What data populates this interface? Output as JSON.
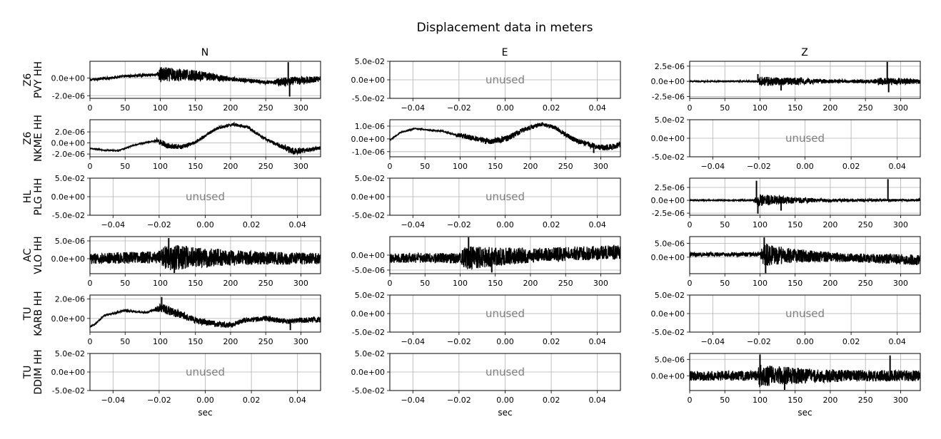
{
  "figure": {
    "title": "Displacement data in meters",
    "columns": [
      "N",
      "E",
      "Z"
    ],
    "xlabel": "sec",
    "unused_text": "unused",
    "rows": [
      {
        "line1": "Z6",
        "line2": "PVY HH"
      },
      {
        "line1": "Z6",
        "line2": "NKME HH"
      },
      {
        "line1": "HL",
        "line2": "PLG HH"
      },
      {
        "line1": "AC",
        "line2": "VLO HH"
      },
      {
        "line1": "TU",
        "line2": "KARB HH"
      },
      {
        "line1": "TU",
        "line2": "DDIM HH"
      }
    ]
  },
  "chart_data": [
    {
      "row": 0,
      "col": 0,
      "type": "line",
      "used": true,
      "xlim": [
        0,
        328
      ],
      "ylim": [
        -2.3e-06,
        1.9e-06
      ],
      "xticks": [
        0,
        50,
        100,
        150,
        200,
        250,
        300
      ],
      "yticks": [
        -2e-06,
        0
      ],
      "ytick_labels": [
        "-2.0e-06",
        "0.0e+00"
      ],
      "baseline": [
        [
          0,
          -2e-07
        ],
        [
          50,
          2e-07
        ],
        [
          95,
          4e-07
        ],
        [
          150,
          3e-07
        ],
        [
          200,
          -1e-07
        ],
        [
          250,
          -5e-07
        ],
        [
          300,
          -3e-07
        ],
        [
          328,
          -1e-07
        ]
      ],
      "noise": [
        [
          0,
          1.5e-07
        ],
        [
          95,
          1.5e-07
        ],
        [
          100,
          9e-07
        ],
        [
          150,
          6e-07
        ],
        [
          200,
          2.5e-07
        ],
        [
          260,
          2e-07
        ],
        [
          270,
          5e-07
        ],
        [
          300,
          5e-07
        ],
        [
          328,
          3e-07
        ]
      ],
      "spikes": [
        [
          100,
          6e-07
        ],
        [
          282,
          1.8e-06
        ],
        [
          284,
          -2.1e-06
        ]
      ]
    },
    {
      "row": 0,
      "col": 1,
      "type": "line",
      "used": false,
      "xlim": [
        -0.05,
        0.05
      ],
      "ylim": [
        -0.05,
        0.05
      ],
      "xticks": [
        -0.04,
        -0.02,
        0,
        0.02,
        0.04
      ],
      "xtick_labels": [
        "−0.04",
        "−0.02",
        "0.00",
        "0.02",
        "0.04"
      ],
      "yticks": [
        -0.05,
        0,
        0.05
      ],
      "ytick_labels": [
        "-5.0e-02",
        "0.0e+00",
        "5.0e-02"
      ]
    },
    {
      "row": 0,
      "col": 2,
      "type": "line",
      "used": true,
      "xlim": [
        0,
        328
      ],
      "ylim": [
        -2.8e-06,
        3.3e-06
      ],
      "xticks": [
        0,
        50,
        100,
        150,
        200,
        250,
        300
      ],
      "yticks": [
        -2.5e-06,
        0,
        2.5e-06
      ],
      "ytick_labels": [
        "-2.5e-06",
        "0.0e+00",
        "2.5e-06"
      ],
      "baseline": [
        [
          0,
          0
        ],
        [
          328,
          0
        ]
      ],
      "noise": [
        [
          0,
          1e-07
        ],
        [
          95,
          1e-07
        ],
        [
          100,
          8e-07
        ],
        [
          150,
          6e-07
        ],
        [
          200,
          3e-07
        ],
        [
          260,
          3e-07
        ],
        [
          270,
          6e-07
        ],
        [
          300,
          5e-07
        ],
        [
          328,
          4e-07
        ]
      ],
      "spikes": [
        [
          97,
          1.2e-06
        ],
        [
          130,
          -1.5e-06
        ],
        [
          281,
          3.2e-06
        ],
        [
          283,
          -1.8e-06
        ]
      ]
    },
    {
      "row": 1,
      "col": 0,
      "type": "line",
      "used": true,
      "xlim": [
        0,
        328
      ],
      "ylim": [
        -2.5e-06,
        4.2e-06
      ],
      "xticks": [
        0,
        50,
        100,
        150,
        200,
        250,
        300
      ],
      "yticks": [
        -2e-06,
        0,
        2e-06
      ],
      "ytick_labels": [
        "-2.0e-06",
        "0.0e+00",
        "2.0e-06"
      ],
      "baseline": [
        [
          0,
          -1e-06
        ],
        [
          20,
          -1.3e-06
        ],
        [
          40,
          -1.4e-06
        ],
        [
          60,
          -5e-07
        ],
        [
          95,
          5e-07
        ],
        [
          110,
          -5e-07
        ],
        [
          130,
          -7e-07
        ],
        [
          150,
          1e-07
        ],
        [
          180,
          2.6e-06
        ],
        [
          205,
          3.4e-06
        ],
        [
          225,
          2.8e-06
        ],
        [
          250,
          7e-07
        ],
        [
          270,
          -5e-07
        ],
        [
          290,
          -1.5e-06
        ],
        [
          310,
          -1.3e-06
        ],
        [
          328,
          -9e-07
        ]
      ],
      "noise": [
        [
          0,
          1e-07
        ],
        [
          90,
          1e-07
        ],
        [
          100,
          6e-07
        ],
        [
          150,
          3e-07
        ],
        [
          200,
          2.5e-07
        ],
        [
          260,
          3e-07
        ],
        [
          290,
          6e-07
        ],
        [
          328,
          3e-07
        ]
      ],
      "spikes": [
        [
          283,
          -1.8e-06
        ]
      ]
    },
    {
      "row": 1,
      "col": 1,
      "type": "line",
      "used": true,
      "xlim": [
        0,
        328
      ],
      "ylim": [
        -1.4e-06,
        1.5e-06
      ],
      "xticks": [
        0,
        50,
        100,
        150,
        200,
        250,
        300
      ],
      "yticks": [
        -1e-06,
        0,
        1e-06
      ],
      "ytick_labels": [
        "-1.0e-06",
        "0.0e+00",
        "1.0e-06"
      ],
      "baseline": [
        [
          0,
          -1e-07
        ],
        [
          15,
          5e-07
        ],
        [
          35,
          8e-07
        ],
        [
          55,
          7e-07
        ],
        [
          75,
          6e-07
        ],
        [
          95,
          3e-07
        ],
        [
          115,
          1e-07
        ],
        [
          140,
          -2e-07
        ],
        [
          165,
          0
        ],
        [
          190,
          7e-07
        ],
        [
          215,
          1.15e-06
        ],
        [
          235,
          9e-07
        ],
        [
          260,
          0
        ],
        [
          285,
          -5e-07
        ],
        [
          305,
          -7e-07
        ],
        [
          320,
          -6e-07
        ],
        [
          328,
          -4e-07
        ]
      ],
      "noise": [
        [
          0,
          4e-08
        ],
        [
          90,
          5e-08
        ],
        [
          100,
          2e-07
        ],
        [
          160,
          2.5e-07
        ],
        [
          220,
          1.5e-07
        ],
        [
          260,
          2e-07
        ],
        [
          328,
          2.5e-07
        ]
      ],
      "spikes": [
        [
          290,
          -1.1e-06
        ]
      ]
    },
    {
      "row": 1,
      "col": 2,
      "type": "line",
      "used": false,
      "xlim": [
        -0.05,
        0.05
      ],
      "ylim": [
        -0.05,
        0.05
      ],
      "xticks": [
        -0.04,
        -0.02,
        0,
        0.02,
        0.04
      ],
      "xtick_labels": [
        "−0.04",
        "−0.02",
        "0.00",
        "0.02",
        "0.04"
      ],
      "yticks": [
        -0.05,
        0,
        0.05
      ],
      "ytick_labels": [
        "-5.0e-02",
        "0.0e+00",
        "5.0e-02"
      ]
    },
    {
      "row": 2,
      "col": 0,
      "type": "line",
      "used": false,
      "xlim": [
        -0.05,
        0.05
      ],
      "ylim": [
        -0.05,
        0.05
      ],
      "xticks": [
        -0.04,
        -0.02,
        0,
        0.02,
        0.04
      ],
      "xtick_labels": [
        "−0.04",
        "−0.02",
        "0.00",
        "0.02",
        "0.04"
      ],
      "yticks": [
        -0.05,
        0,
        0.05
      ],
      "ytick_labels": [
        "-5.0e-02",
        "0.0e+00",
        "5.0e-02"
      ]
    },
    {
      "row": 2,
      "col": 1,
      "type": "line",
      "used": false,
      "xlim": [
        -0.05,
        0.05
      ],
      "ylim": [
        -0.05,
        0.05
      ],
      "xticks": [
        -0.04,
        -0.02,
        0,
        0.02,
        0.04
      ],
      "xtick_labels": [
        "−0.04",
        "−0.02",
        "0.00",
        "0.02",
        "0.04"
      ],
      "yticks": [
        -0.05,
        0,
        0.05
      ],
      "ytick_labels": [
        "-5.0e-02",
        "0.0e+00",
        "5.0e-02"
      ]
    },
    {
      "row": 2,
      "col": 2,
      "type": "line",
      "used": true,
      "xlim": [
        0,
        328
      ],
      "ylim": [
        -2.9e-06,
        4.3e-06
      ],
      "xticks": [
        0,
        50,
        100,
        150,
        200,
        250,
        300
      ],
      "yticks": [
        -2.5e-06,
        0,
        2.5e-06
      ],
      "ytick_labels": [
        "-2.5e-06",
        "0.0e+00",
        "2.5e-06"
      ],
      "baseline": [
        [
          0,
          0
        ],
        [
          328,
          0
        ]
      ],
      "noise": [
        [
          0,
          1e-07
        ],
        [
          90,
          1e-07
        ],
        [
          98,
          1.2e-06
        ],
        [
          150,
          6e-07
        ],
        [
          200,
          3e-07
        ],
        [
          270,
          2.5e-07
        ],
        [
          328,
          2.5e-07
        ]
      ],
      "spikes": [
        [
          95,
          3.8e-06
        ],
        [
          97,
          -2.6e-06
        ],
        [
          130,
          -2e-06
        ],
        [
          282,
          4.1e-06
        ]
      ]
    },
    {
      "row": 3,
      "col": 0,
      "type": "line",
      "used": true,
      "xlim": [
        0,
        328
      ],
      "ylim": [
        -4.2e-06,
        6.2e-06
      ],
      "xticks": [
        0,
        50,
        100,
        150,
        200,
        250,
        300
      ],
      "yticks": [
        0,
        5e-06
      ],
      "ytick_labels": [
        "0.0e+00",
        "5.0e-06"
      ],
      "baseline": [
        [
          0,
          0
        ],
        [
          100,
          5e-07
        ],
        [
          150,
          3e-07
        ],
        [
          328,
          0
        ]
      ],
      "noise": [
        [
          0,
          1.5e-06
        ],
        [
          100,
          1.8e-06
        ],
        [
          108,
          4e-06
        ],
        [
          160,
          2.8e-06
        ],
        [
          220,
          2e-06
        ],
        [
          328,
          1.6e-06
        ]
      ],
      "spikes": [
        [
          112,
          5.8e-06
        ],
        [
          120,
          -4e-06
        ]
      ]
    },
    {
      "row": 3,
      "col": 1,
      "type": "line",
      "used": true,
      "xlim": [
        0,
        328
      ],
      "ylim": [
        -6.2e-06,
        6.2e-06
      ],
      "xticks": [
        0,
        50,
        100,
        150,
        200,
        250,
        300
      ],
      "yticks": [
        -5e-06,
        0
      ],
      "ytick_labels": [
        "-5.0e-06",
        "0.0e+00"
      ],
      "baseline": [
        [
          0,
          -1e-06
        ],
        [
          100,
          -1e-06
        ],
        [
          200,
          0
        ],
        [
          328,
          1e-06
        ]
      ],
      "noise": [
        [
          0,
          1.6e-06
        ],
        [
          100,
          1.8e-06
        ],
        [
          108,
          4e-06
        ],
        [
          160,
          3e-06
        ],
        [
          220,
          2.4e-06
        ],
        [
          328,
          2.4e-06
        ]
      ],
      "spikes": [
        [
          112,
          6e-06
        ],
        [
          145,
          -5.8e-06
        ]
      ]
    },
    {
      "row": 3,
      "col": 2,
      "type": "line",
      "used": true,
      "xlim": [
        0,
        328
      ],
      "ylim": [
        -6e-06,
        7.5e-06
      ],
      "xticks": [
        0,
        50,
        100,
        150,
        200,
        250,
        300
      ],
      "yticks": [
        0,
        5e-06
      ],
      "ytick_labels": [
        "0.0e+00",
        "5.0e-06"
      ],
      "baseline": [
        [
          0,
          1e-06
        ],
        [
          100,
          1e-06
        ],
        [
          200,
          0
        ],
        [
          328,
          -1e-06
        ]
      ],
      "noise": [
        [
          0,
          7e-07
        ],
        [
          100,
          8e-07
        ],
        [
          105,
          4.2e-06
        ],
        [
          150,
          2.5e-06
        ],
        [
          220,
          1.6e-06
        ],
        [
          328,
          2e-06
        ]
      ],
      "spikes": [
        [
          106,
          7.2e-06
        ],
        [
          108,
          -5.8e-06
        ]
      ]
    },
    {
      "row": 4,
      "col": 0,
      "type": "line",
      "used": true,
      "xlim": [
        0,
        328
      ],
      "ylim": [
        -1.4e-06,
        2.4e-06
      ],
      "xticks": [
        0,
        50,
        100,
        150,
        200,
        250,
        300
      ],
      "yticks": [
        0,
        2e-06
      ],
      "ytick_labels": [
        "0.0e+00",
        "2.0e-06"
      ],
      "baseline": [
        [
          0,
          -9e-07
        ],
        [
          10,
          -4e-07
        ],
        [
          20,
          3e-07
        ],
        [
          50,
          8e-07
        ],
        [
          80,
          6e-07
        ],
        [
          100,
          1.1e-06
        ],
        [
          120,
          6e-07
        ],
        [
          150,
          -2e-07
        ],
        [
          180,
          -6e-07
        ],
        [
          200,
          -7e-07
        ],
        [
          220,
          -2e-07
        ],
        [
          250,
          0
        ],
        [
          280,
          -3e-07
        ],
        [
          300,
          -2e-07
        ],
        [
          328,
          -1e-07
        ]
      ],
      "noise": [
        [
          0,
          8e-08
        ],
        [
          90,
          1e-07
        ],
        [
          100,
          5e-07
        ],
        [
          150,
          3.5e-07
        ],
        [
          220,
          2.5e-07
        ],
        [
          328,
          3e-07
        ]
      ],
      "spikes": [
        [
          102,
          2.2e-06
        ],
        [
          285,
          -1.2e-06
        ]
      ]
    },
    {
      "row": 4,
      "col": 1,
      "type": "line",
      "used": false,
      "xlim": [
        -0.05,
        0.05
      ],
      "ylim": [
        -0.05,
        0.05
      ],
      "xticks": [
        -0.04,
        -0.02,
        0,
        0.02,
        0.04
      ],
      "xtick_labels": [
        "−0.04",
        "−0.02",
        "0.00",
        "0.02",
        "0.04"
      ],
      "yticks": [
        -0.05,
        0,
        0.05
      ],
      "ytick_labels": [
        "-5.0e-02",
        "0.0e+00",
        "5.0e-02"
      ]
    },
    {
      "row": 4,
      "col": 2,
      "type": "line",
      "used": false,
      "xlim": [
        -0.05,
        0.05
      ],
      "ylim": [
        -0.05,
        0.05
      ],
      "xticks": [
        -0.04,
        -0.02,
        0,
        0.02,
        0.04
      ],
      "xtick_labels": [
        "−0.04",
        "−0.02",
        "0.00",
        "0.02",
        "0.04"
      ],
      "yticks": [
        -0.05,
        0,
        0.05
      ],
      "ytick_labels": [
        "-5.0e-02",
        "0.0e+00",
        "5.0e-02"
      ]
    },
    {
      "row": 5,
      "col": 0,
      "type": "line",
      "used": false,
      "xlim": [
        -0.05,
        0.05
      ],
      "ylim": [
        -0.05,
        0.05
      ],
      "xticks": [
        -0.04,
        -0.02,
        0,
        0.02,
        0.04
      ],
      "xtick_labels": [
        "−0.04",
        "−0.02",
        "0.00",
        "0.02",
        "0.04"
      ],
      "yticks": [
        -0.05,
        0,
        0.05
      ],
      "ytick_labels": [
        "-5.0e-02",
        "0.0e+00",
        "5.0e-02"
      ]
    },
    {
      "row": 5,
      "col": 1,
      "type": "line",
      "used": false,
      "xlim": [
        -0.05,
        0.05
      ],
      "ylim": [
        -0.05,
        0.05
      ],
      "xticks": [
        -0.04,
        -0.02,
        0,
        0.02,
        0.04
      ],
      "xtick_labels": [
        "−0.04",
        "−0.02",
        "0.00",
        "0.02",
        "0.04"
      ],
      "yticks": [
        -0.05,
        0,
        0.05
      ],
      "ytick_labels": [
        "-5.0e-02",
        "0.0e+00",
        "5.0e-02"
      ]
    },
    {
      "row": 5,
      "col": 2,
      "type": "line",
      "used": true,
      "xlim": [
        0,
        328
      ],
      "ylim": [
        -4.5e-06,
        6.8e-06
      ],
      "xticks": [
        0,
        50,
        100,
        150,
        200,
        250,
        300
      ],
      "yticks": [
        0,
        5e-06
      ],
      "ytick_labels": [
        "0.0e+00",
        "5.0e-06"
      ],
      "baseline": [
        [
          0,
          0
        ],
        [
          328,
          0
        ]
      ],
      "noise": [
        [
          0,
          1.5e-06
        ],
        [
          95,
          1.5e-06
        ],
        [
          100,
          3.5e-06
        ],
        [
          150,
          2.5e-06
        ],
        [
          220,
          1.8e-06
        ],
        [
          328,
          1.6e-06
        ]
      ],
      "spikes": [
        [
          100,
          6.5e-06
        ],
        [
          135,
          -4.3e-06
        ],
        [
          285,
          6.2e-06
        ]
      ]
    }
  ]
}
